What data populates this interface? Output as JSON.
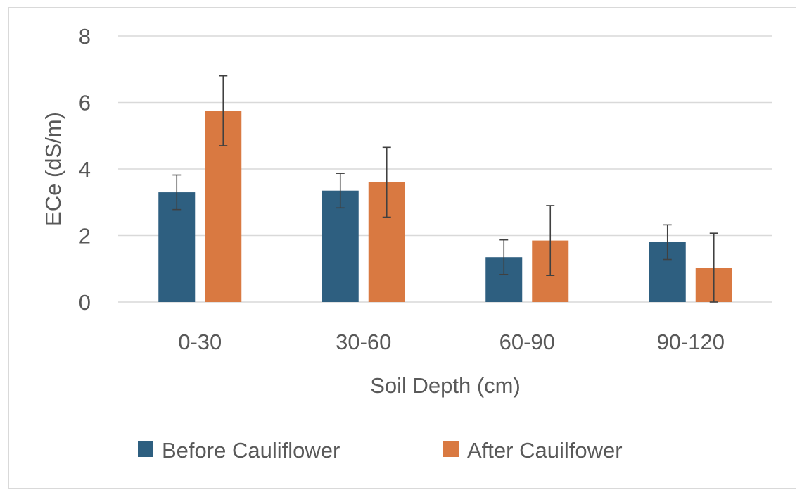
{
  "chart_data": {
    "type": "bar",
    "title": "",
    "xlabel": "Soil Depth (cm)",
    "ylabel": "ECe (dS/m)",
    "categories": [
      "0-30",
      "30-60",
      "60-90",
      "90-120"
    ],
    "ylim": [
      0,
      8
    ],
    "yticks": [
      0,
      2,
      4,
      6,
      8
    ],
    "ytick_labels": [
      "0",
      "2",
      "4",
      "6",
      "8"
    ],
    "grid": true,
    "legend_position": "bottom",
    "series": [
      {
        "name": "Before Cauliflower",
        "color": "#2e5f80",
        "values": [
          3.3,
          3.35,
          1.35,
          1.8
        ],
        "errors": [
          0.52,
          0.52,
          0.52,
          0.52
        ]
      },
      {
        "name": "After Cauilfower",
        "color": "#d97941",
        "values": [
          5.75,
          3.6,
          1.85,
          1.02
        ],
        "errors": [
          1.05,
          1.05,
          1.05,
          1.05
        ]
      }
    ],
    "gridline_color": "#d9d9d9",
    "errorbar_color": "#404040"
  }
}
